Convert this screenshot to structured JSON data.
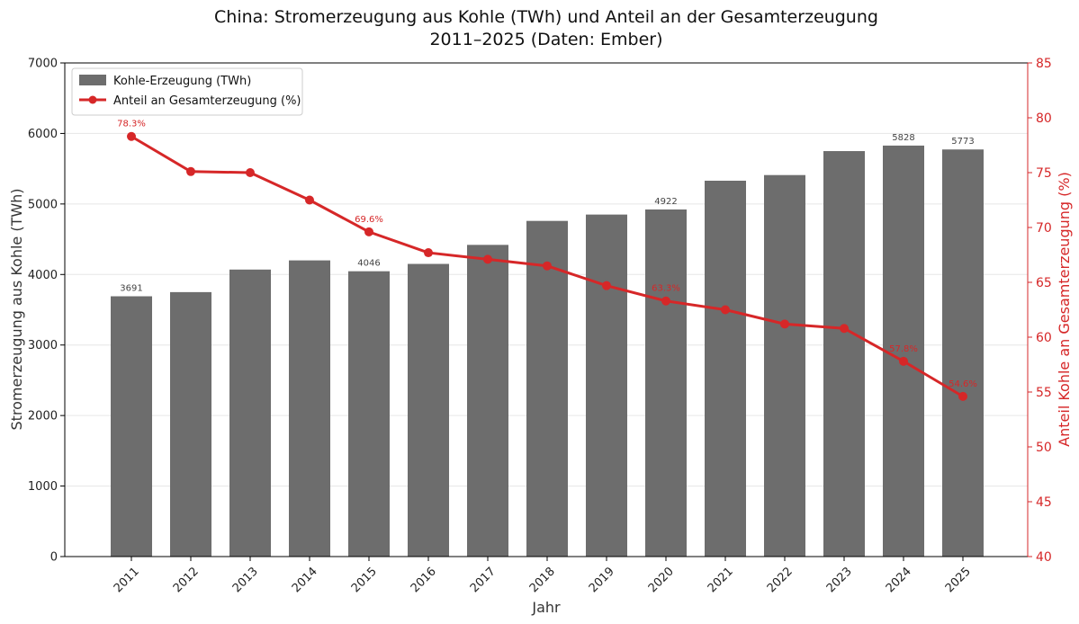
{
  "chart_data": {
    "type": "bar",
    "title": "China: Stromerzeugung aus Kohle (TWh) und Anteil an der Gesamterzeugung",
    "subtitle": "2011–2025 (Daten: Ember)",
    "xlabel": "Jahr",
    "ylabel": "Stromerzeugung aus Kohle (TWh)",
    "y2label": "Anteil Kohle an Gesamterzeugung (%)",
    "ylim": [
      0,
      7000
    ],
    "y2lim": [
      40,
      85
    ],
    "yticks": [
      "0",
      "1000",
      "2000",
      "3000",
      "4000",
      "5000",
      "6000",
      "7000"
    ],
    "y2ticks": [
      "40",
      "45",
      "50",
      "55",
      "60",
      "65",
      "70",
      "75",
      "80",
      "85"
    ],
    "grid": "horizontal",
    "legend_position": "top-left",
    "categories": [
      "2011",
      "2012",
      "2013",
      "2014",
      "2015",
      "2016",
      "2017",
      "2018",
      "2019",
      "2020",
      "2021",
      "2022",
      "2023",
      "2024",
      "2025"
    ],
    "series": [
      {
        "name": "Kohle-Erzeugung (TWh)",
        "type": "bar",
        "axis": "left",
        "color": "#6d6d6d",
        "values": [
          3691,
          3750,
          4070,
          4200,
          4046,
          4150,
          4420,
          4760,
          4850,
          4922,
          5330,
          5410,
          5750,
          5828,
          5773
        ],
        "labels": [
          "3691",
          "",
          "",
          "",
          "4046",
          "",
          "",
          "",
          "",
          "4922",
          "",
          "",
          "",
          "5828",
          "5773"
        ]
      },
      {
        "name": "Anteil an Gesamterzeugung (%)",
        "type": "line",
        "axis": "right",
        "color": "#d62728",
        "values": [
          78.3,
          75.1,
          75.0,
          72.5,
          69.6,
          67.7,
          67.1,
          66.5,
          64.7,
          63.3,
          62.5,
          61.2,
          60.8,
          57.8,
          54.6
        ],
        "labels": [
          "78.3%",
          "",
          "",
          "",
          "69.6%",
          "",
          "",
          "",
          "",
          "63.3%",
          "",
          "",
          "",
          "57.8%",
          "54.6%"
        ]
      }
    ]
  }
}
